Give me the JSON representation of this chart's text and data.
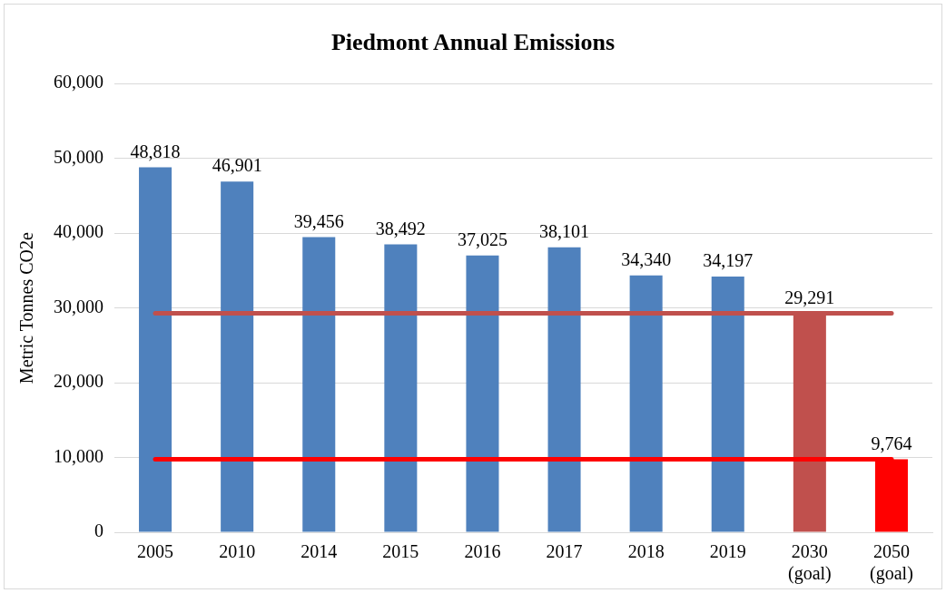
{
  "chart_data": {
    "type": "bar",
    "title": "Piedmont Annual Emissions",
    "ylabel": "Metric Tonnes CO2e",
    "categories": [
      "2005",
      "2010",
      "2014",
      "2015",
      "2016",
      "2017",
      "2018",
      "2019",
      "2030\n(goal)",
      "2050\n(goal)"
    ],
    "values": [
      48818,
      46901,
      39456,
      38492,
      37025,
      38101,
      34340,
      34197,
      29291,
      9764
    ],
    "colors": [
      "#4f81bd",
      "#4f81bd",
      "#4f81bd",
      "#4f81bd",
      "#4f81bd",
      "#4f81bd",
      "#4f81bd",
      "#4f81bd",
      "#c0504d",
      "#ff0000"
    ],
    "value_labels": [
      "48,818",
      "46,901",
      "39,456",
      "38,492",
      "37,025",
      "38,101",
      "34,340",
      "34,197",
      "29,291",
      "9,764"
    ],
    "ylim": [
      0,
      60000
    ],
    "yticks": [
      0,
      {
        "value": 10000,
        "label": "10,000"
      },
      {
        "value": 20000,
        "label": "20,000"
      },
      {
        "value": 30000,
        "label": "30,000"
      },
      {
        "value": 40000,
        "label": "40,000"
      },
      {
        "value": 50000,
        "label": "50,000"
      },
      {
        "value": 60000,
        "label": "60,000"
      }
    ],
    "grid": "y",
    "legend": false,
    "ref_lines": [
      {
        "axis": "y",
        "value": 29291,
        "color": "#c0504d"
      },
      {
        "axis": "y",
        "value": 9764,
        "color": "#ff0000"
      }
    ]
  }
}
